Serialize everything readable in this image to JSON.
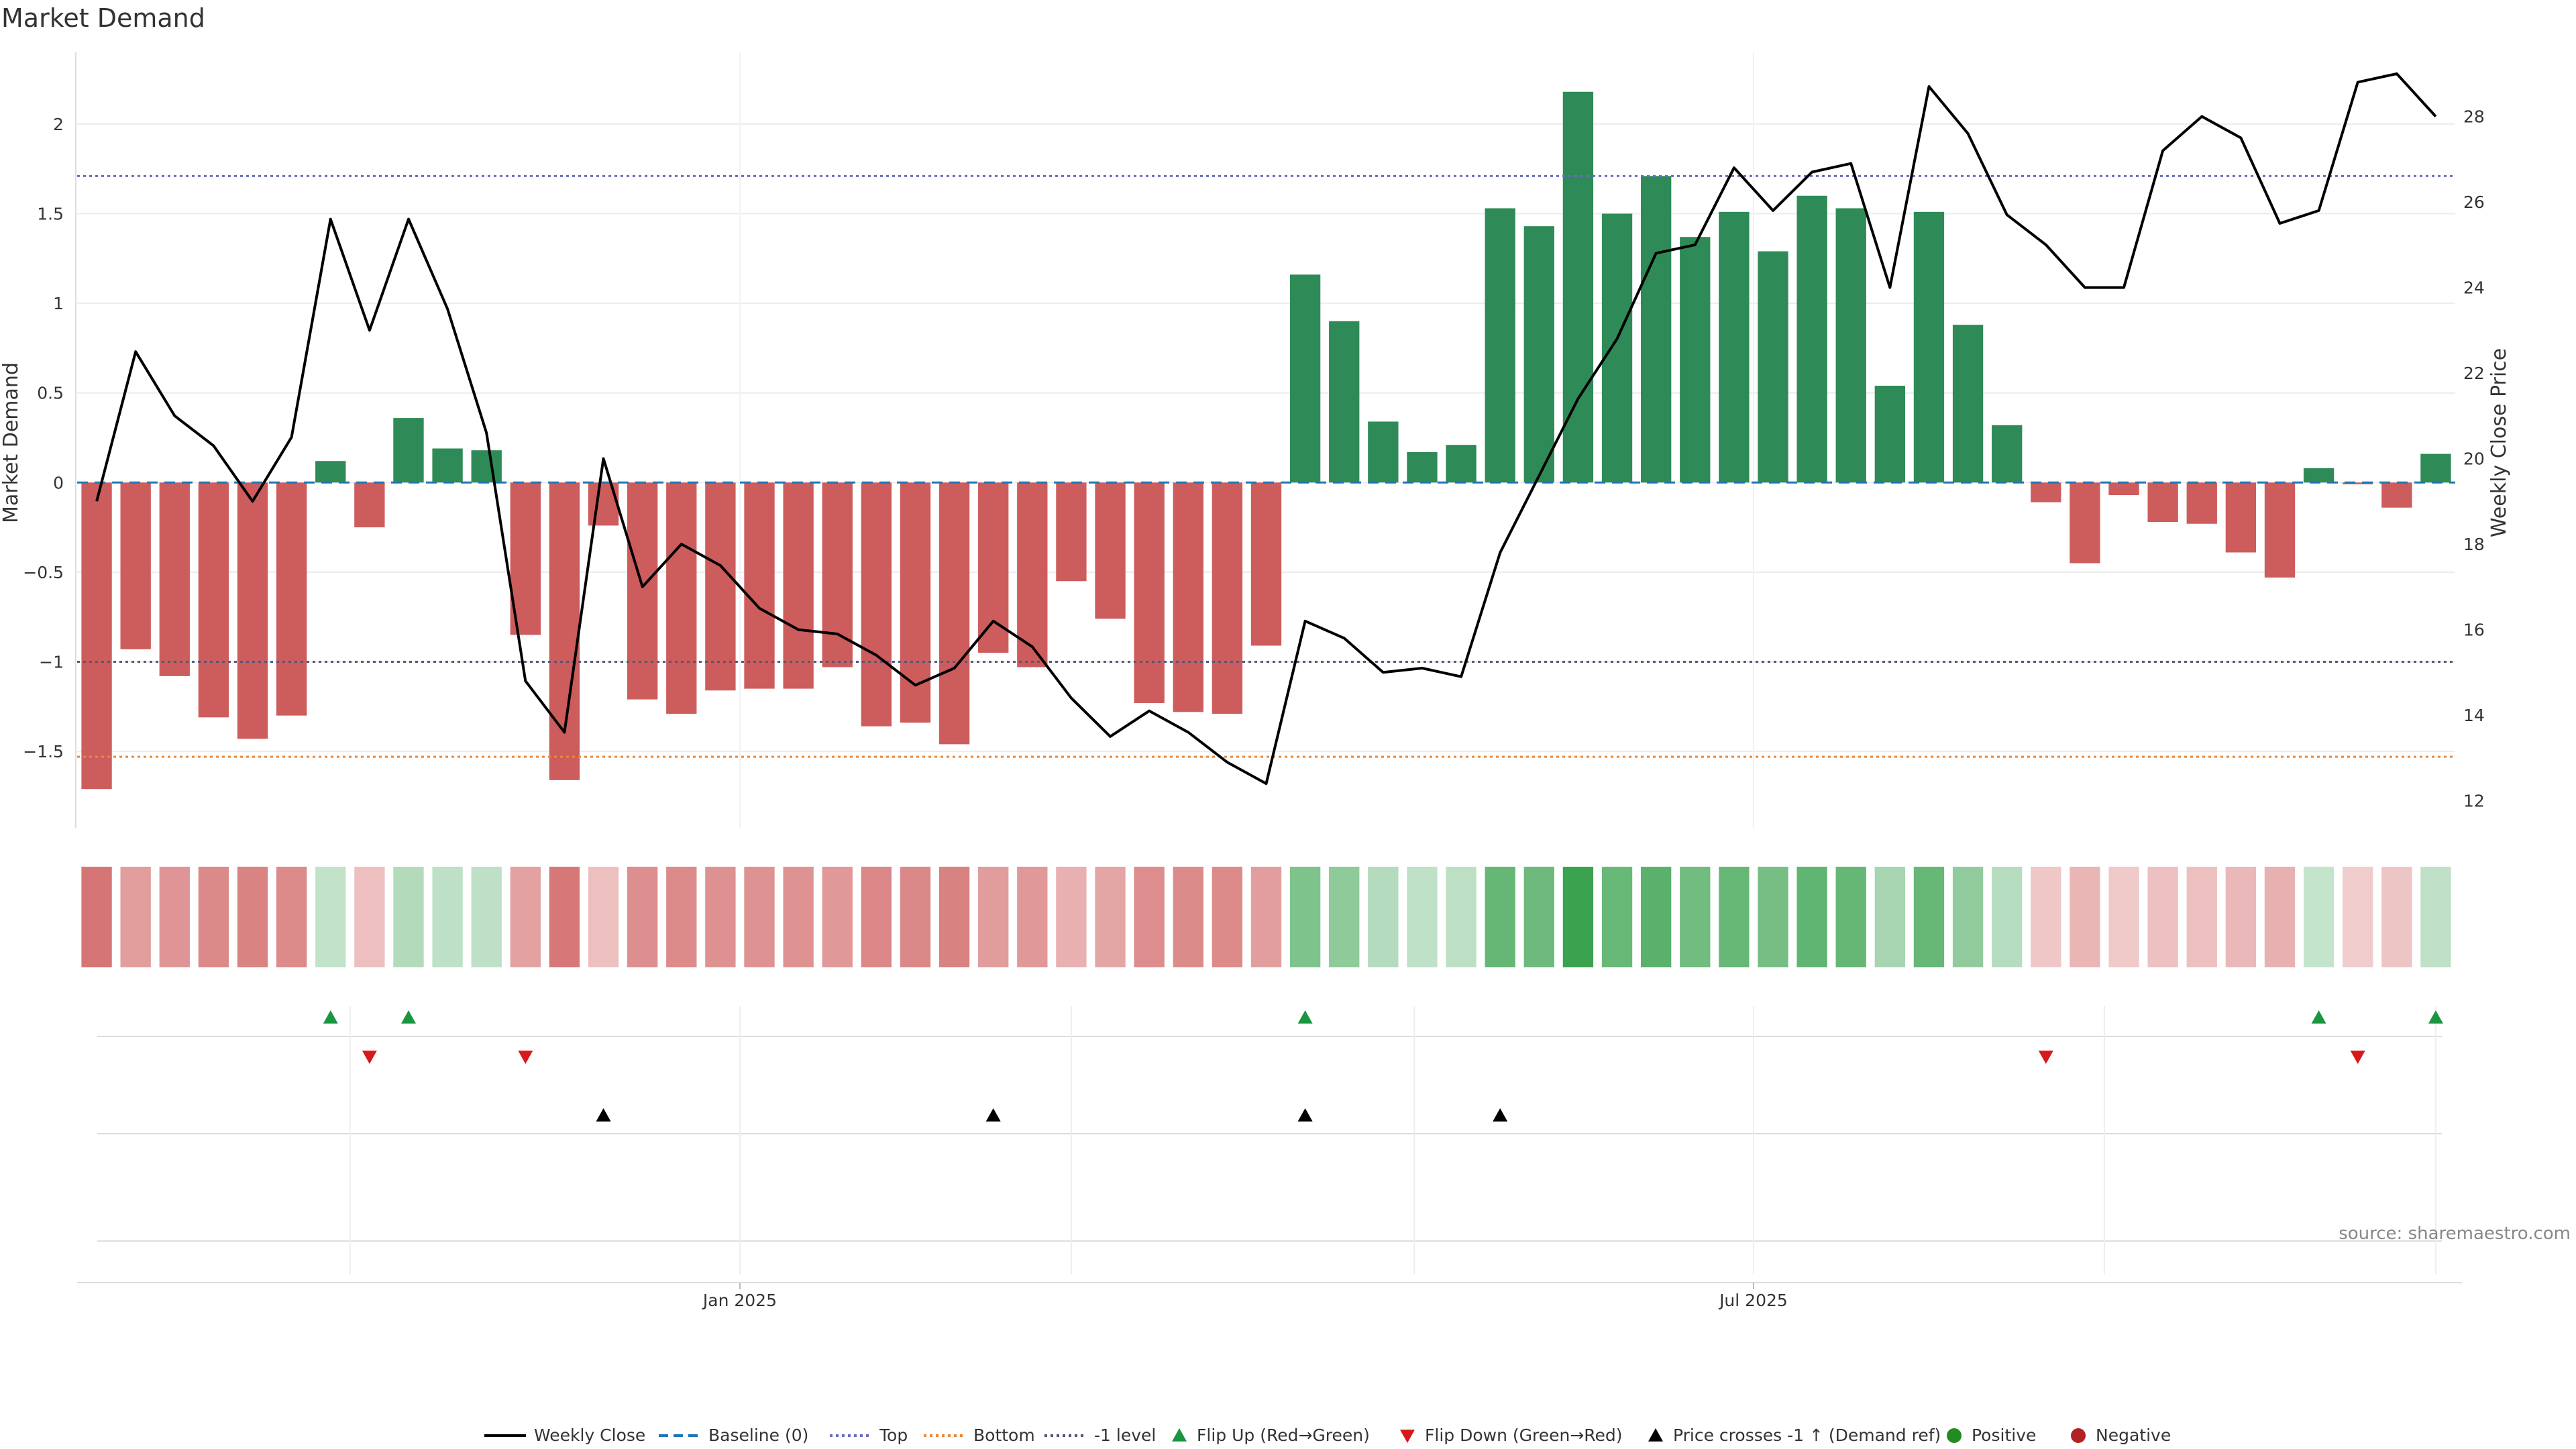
{
  "chart_data": {
    "type": "bar",
    "title": "Market Demand",
    "ylabel_left": "Market Demand",
    "ylabel_right": "Weekly Close Price",
    "ylim_left": [
      -1.93,
      2.4
    ],
    "ylim_right": [
      11.35,
      29.5
    ],
    "yticks_left": [
      2,
      1.5,
      1,
      0.5,
      0,
      -0.5,
      -1,
      -1.5
    ],
    "yticks_left_labels": [
      "2",
      "1.5",
      "1",
      "0.5",
      "0",
      "−0.5",
      "−1",
      "−1.5"
    ],
    "yticks_right": [
      28,
      26,
      24,
      22,
      20,
      18,
      16,
      14,
      12
    ],
    "x_ticks": [
      {
        "label": "Jan 2025",
        "index": 16.5
      },
      {
        "label": "Jul 2025",
        "index": 42.5
      }
    ],
    "reference_lines": {
      "baseline": 0,
      "top": 1.71,
      "bottom": -1.53,
      "minus_one_level": -1
    },
    "demand": [
      -1.71,
      -0.93,
      -1.08,
      -1.31,
      -1.43,
      -1.3,
      0.12,
      -0.25,
      0.36,
      0.19,
      0.18,
      -0.85,
      -1.66,
      -0.24,
      -1.21,
      -1.29,
      -1.16,
      -1.15,
      -1.15,
      -1.03,
      -1.36,
      -1.34,
      -1.46,
      -0.95,
      -1.03,
      -0.55,
      -0.76,
      -1.23,
      -1.28,
      -1.29,
      -0.91,
      1.16,
      0.9,
      0.34,
      0.17,
      0.21,
      1.53,
      1.43,
      2.18,
      1.5,
      1.71,
      1.37,
      1.51,
      1.29,
      1.6,
      1.53,
      0.54,
      1.51,
      0.88,
      0.32,
      -0.11,
      -0.45,
      -0.07,
      -0.22,
      -0.23,
      -0.39,
      -0.53,
      0.08,
      -0.01,
      -0.14,
      0.16
    ],
    "weekly_close": [
      19.0,
      22.5,
      21.0,
      20.3,
      19.0,
      20.5,
      25.6,
      23.0,
      25.6,
      23.5,
      20.6,
      14.8,
      13.6,
      20.0,
      17.0,
      18.0,
      17.5,
      16.5,
      16.0,
      15.9,
      15.4,
      14.7,
      15.1,
      16.2,
      15.6,
      14.4,
      13.5,
      14.1,
      13.6,
      12.9,
      12.4,
      16.2,
      15.8,
      15.0,
      15.1,
      14.9,
      17.8,
      19.6,
      21.4,
      22.8,
      24.8,
      25.0,
      26.8,
      25.8,
      26.7,
      26.9,
      24.0,
      28.7,
      27.6,
      25.7,
      25.0,
      24.0,
      24.0,
      27.2,
      28.0,
      27.5,
      25.5,
      25.8,
      28.8,
      29.0,
      28.0
    ],
    "flip_up_indices": [
      6,
      8,
      31,
      57,
      60
    ],
    "flip_down_indices": [
      7,
      11,
      50,
      58
    ],
    "price_cross_indices": [
      13,
      23,
      31,
      36
    ],
    "legend": [
      "Weekly Close",
      "Baseline (0)",
      "Top",
      "Bottom",
      "-1 level",
      "Flip Up (Red→Green)",
      "Flip Down (Green→Red)",
      "Price crosses -1 ↑ (Demand ref)",
      "Positive",
      "Negative"
    ],
    "source": "source: sharemaestro.com",
    "colors": {
      "positive": "#2e8b57",
      "negative": "#cd5c5c",
      "price_line": "#000000",
      "baseline": "#1f77b4",
      "top": "#6a6ac8",
      "bottom": "#e8883a",
      "minus_one": "#555577",
      "flip_up": "#1a9641",
      "flip_down": "#d7191c",
      "cross": "#000000",
      "legend_positive": "#228b22",
      "legend_negative": "#b22222",
      "grid": "#ececec"
    }
  }
}
